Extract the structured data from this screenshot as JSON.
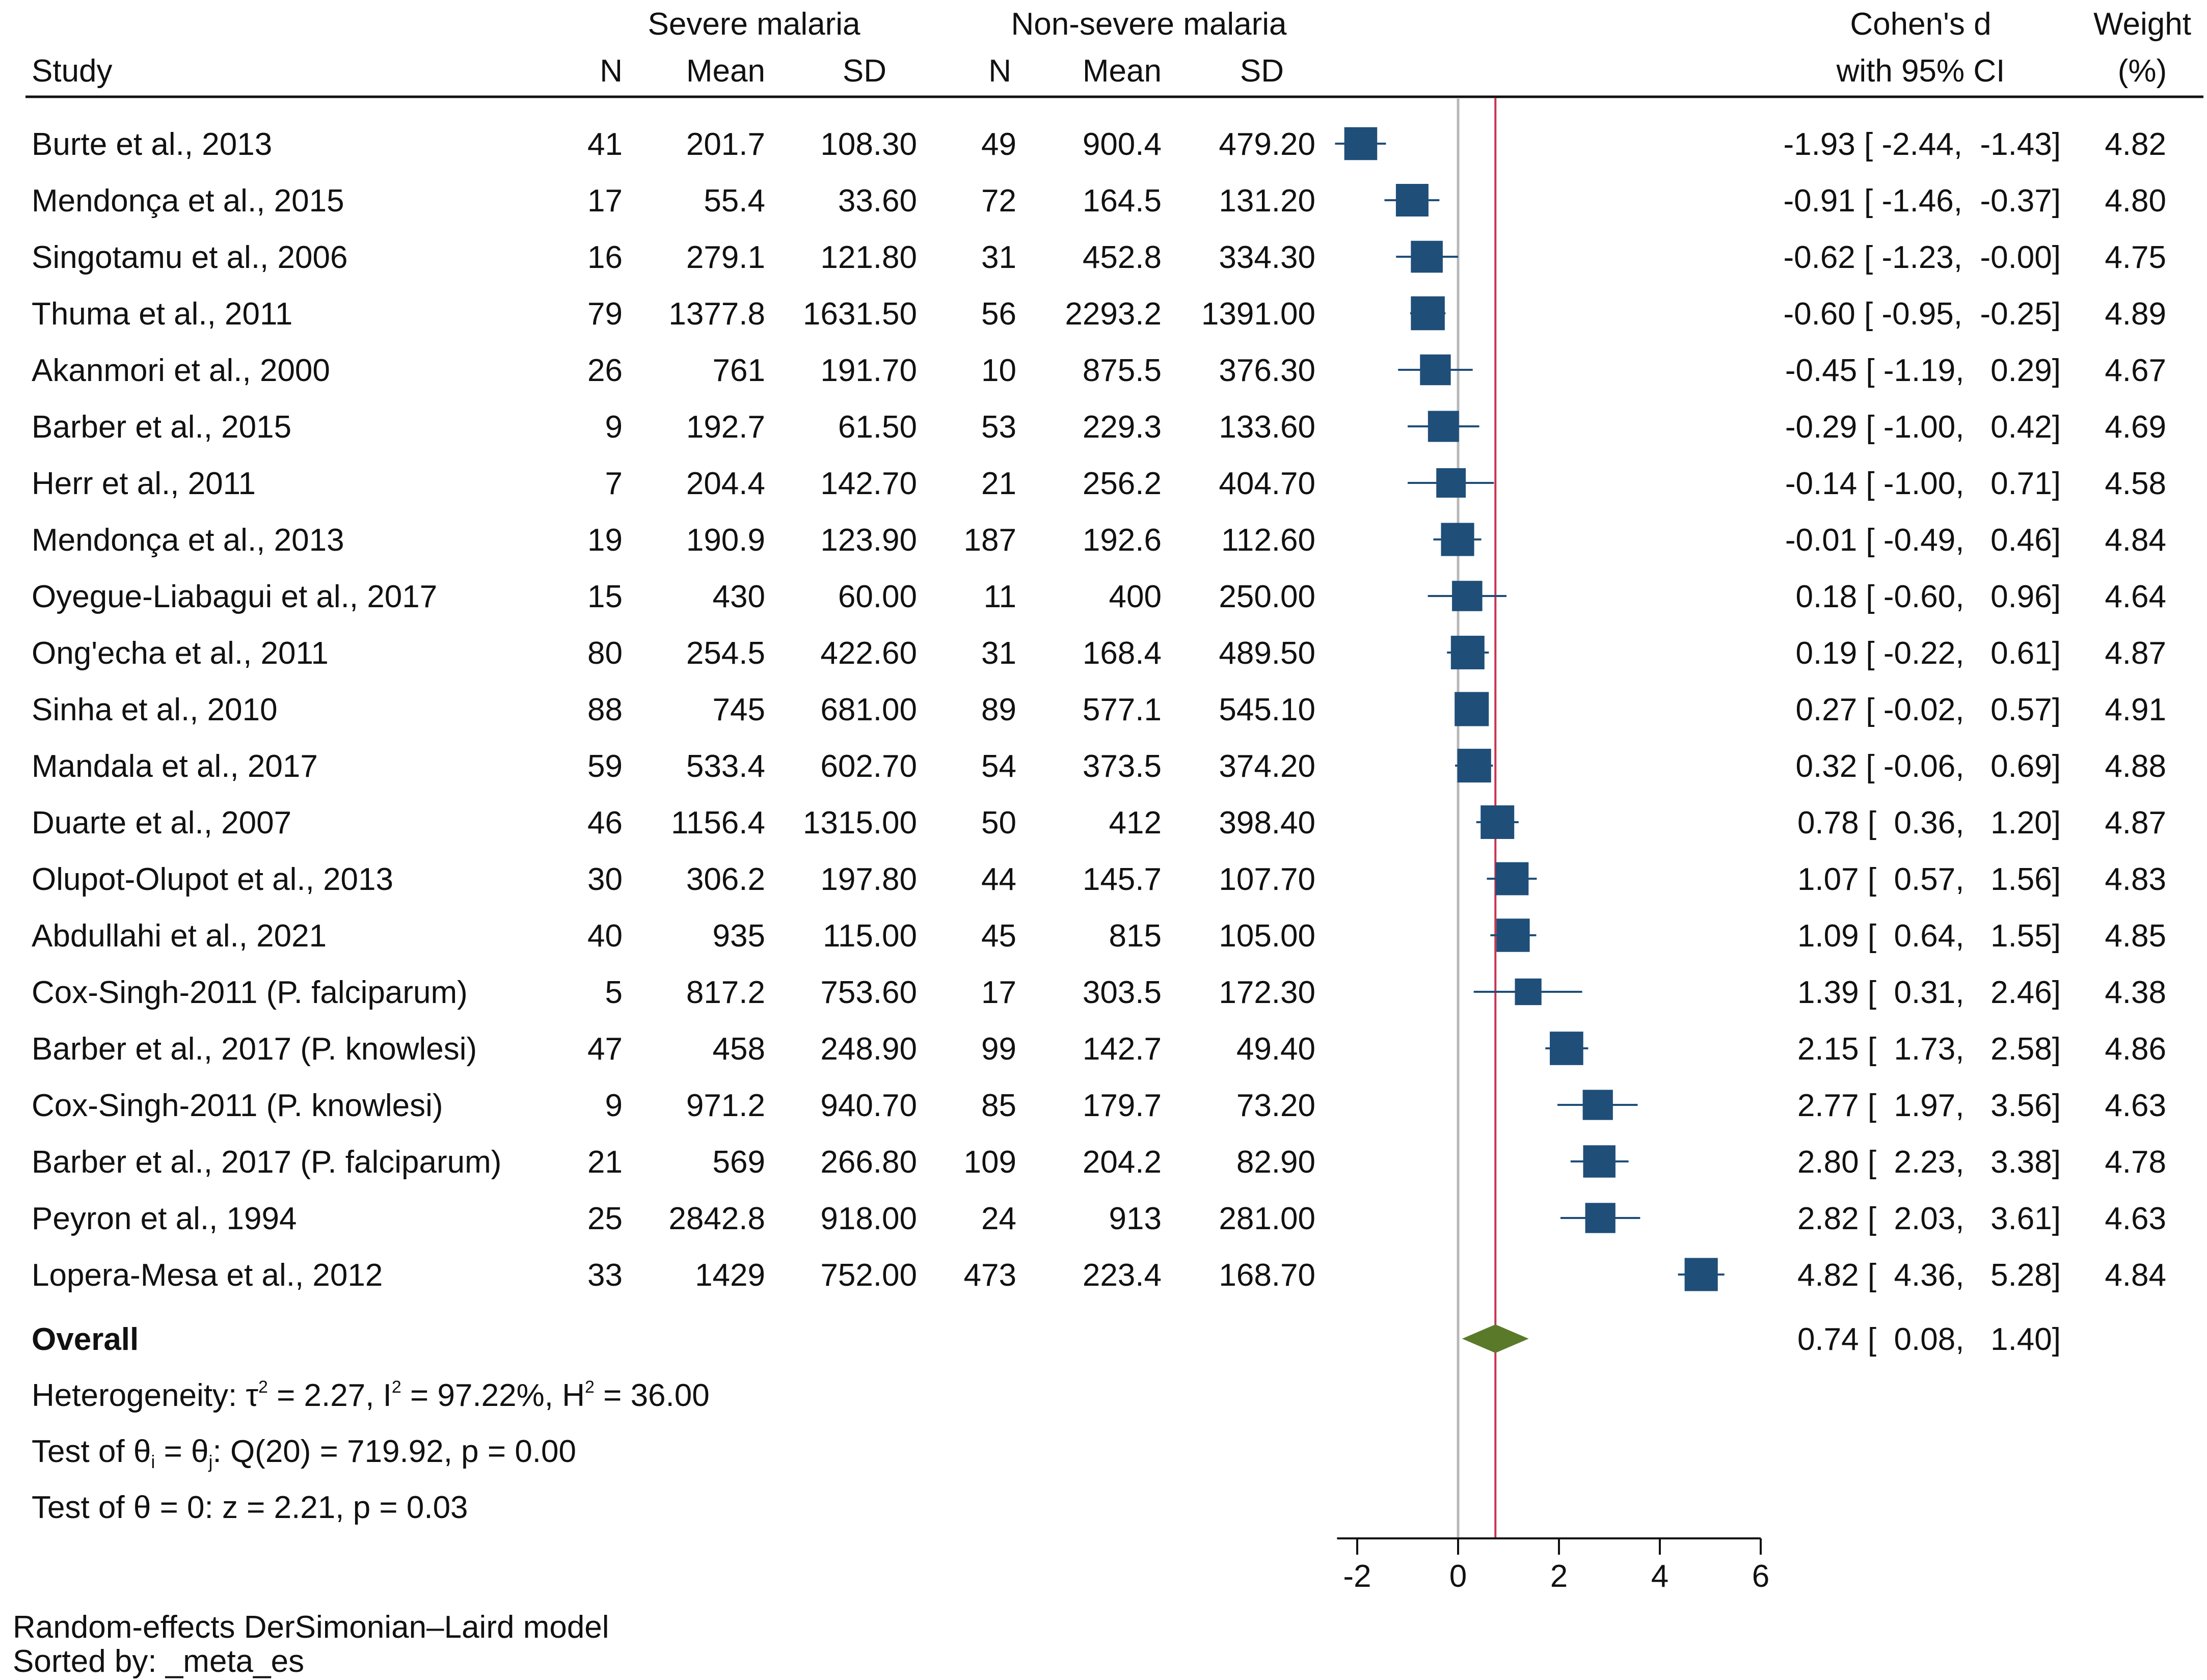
{
  "chart_data": {
    "type": "forest",
    "title": "",
    "group_headers": {
      "severe": "Severe malaria",
      "nonsevere": "Non-severe malaria"
    },
    "columns": {
      "study": "Study",
      "n1": "N",
      "mean1": "Mean",
      "sd1": "SD",
      "n2": "N",
      "mean2": "Mean",
      "sd2": "SD",
      "es_line1": "Cohen's d",
      "es_line2": "with 95% CI",
      "weight_line1": "Weight",
      "weight_line2": "(%)"
    },
    "studies": [
      {
        "study": "Burte et al., 2013",
        "n1": "41",
        "mean1": "201.7",
        "sd1": "108.30",
        "n2": "49",
        "mean2": "900.4",
        "sd2": "479.20",
        "d": -1.93,
        "lo": -2.44,
        "hi": -1.43,
        "es_text": "-1.93 [ -2.44,  -1.43]",
        "weight": "4.82"
      },
      {
        "study": "Mendonça et al., 2015",
        "n1": "17",
        "mean1": "55.4",
        "sd1": "33.60",
        "n2": "72",
        "mean2": "164.5",
        "sd2": "131.20",
        "d": -0.91,
        "lo": -1.46,
        "hi": -0.37,
        "es_text": "-0.91 [ -1.46,  -0.37]",
        "weight": "4.80"
      },
      {
        "study": "Singotamu et al., 2006",
        "n1": "16",
        "mean1": "279.1",
        "sd1": "121.80",
        "n2": "31",
        "mean2": "452.8",
        "sd2": "334.30",
        "d": -0.62,
        "lo": -1.23,
        "hi": -0.0,
        "es_text": "-0.62 [ -1.23,  -0.00]",
        "weight": "4.75"
      },
      {
        "study": "Thuma et al., 2011",
        "n1": "79",
        "mean1": "1377.8",
        "sd1": "1631.50",
        "n2": "56",
        "mean2": "2293.2",
        "sd2": "1391.00",
        "d": -0.6,
        "lo": -0.95,
        "hi": -0.25,
        "es_text": "-0.60 [ -0.95,  -0.25]",
        "weight": "4.89"
      },
      {
        "study": "Akanmori et al., 2000",
        "n1": "26",
        "mean1": "761",
        "sd1": "191.70",
        "n2": "10",
        "mean2": "875.5",
        "sd2": "376.30",
        "d": -0.45,
        "lo": -1.19,
        "hi": 0.29,
        "es_text": "-0.45 [ -1.19,   0.29]",
        "weight": "4.67"
      },
      {
        "study": "Barber et al., 2015",
        "n1": "9",
        "mean1": "192.7",
        "sd1": "61.50",
        "n2": "53",
        "mean2": "229.3",
        "sd2": "133.60",
        "d": -0.29,
        "lo": -1.0,
        "hi": 0.42,
        "es_text": "-0.29 [ -1.00,   0.42]",
        "weight": "4.69"
      },
      {
        "study": "Herr et al., 2011",
        "n1": "7",
        "mean1": "204.4",
        "sd1": "142.70",
        "n2": "21",
        "mean2": "256.2",
        "sd2": "404.70",
        "d": -0.14,
        "lo": -1.0,
        "hi": 0.71,
        "es_text": "-0.14 [ -1.00,   0.71]",
        "weight": "4.58"
      },
      {
        "study": "Mendonça et al., 2013",
        "n1": "19",
        "mean1": "190.9",
        "sd1": "123.90",
        "n2": "187",
        "mean2": "192.6",
        "sd2": "112.60",
        "d": -0.01,
        "lo": -0.49,
        "hi": 0.46,
        "es_text": "-0.01 [ -0.49,   0.46]",
        "weight": "4.84"
      },
      {
        "study": "Oyegue-Liabagui et al., 2017",
        "n1": "15",
        "mean1": "430",
        "sd1": "60.00",
        "n2": "11",
        "mean2": "400",
        "sd2": "250.00",
        "d": 0.18,
        "lo": -0.6,
        "hi": 0.96,
        "es_text": "0.18 [ -0.60,   0.96]",
        "weight": "4.64"
      },
      {
        "study": "Ong'echa et al., 2011",
        "n1": "80",
        "mean1": "254.5",
        "sd1": "422.60",
        "n2": "31",
        "mean2": "168.4",
        "sd2": "489.50",
        "d": 0.19,
        "lo": -0.22,
        "hi": 0.61,
        "es_text": "0.19 [ -0.22,   0.61]",
        "weight": "4.87"
      },
      {
        "study": "Sinha et al., 2010",
        "n1": "88",
        "mean1": "745",
        "sd1": "681.00",
        "n2": "89",
        "mean2": "577.1",
        "sd2": "545.10",
        "d": 0.27,
        "lo": -0.02,
        "hi": 0.57,
        "es_text": "0.27 [ -0.02,   0.57]",
        "weight": "4.91"
      },
      {
        "study": "Mandala et al., 2017",
        "n1": "59",
        "mean1": "533.4",
        "sd1": "602.70",
        "n2": "54",
        "mean2": "373.5",
        "sd2": "374.20",
        "d": 0.32,
        "lo": -0.06,
        "hi": 0.69,
        "es_text": "0.32 [ -0.06,   0.69]",
        "weight": "4.88"
      },
      {
        "study": "Duarte et al., 2007",
        "n1": "46",
        "mean1": "1156.4",
        "sd1": "1315.00",
        "n2": "50",
        "mean2": "412",
        "sd2": "398.40",
        "d": 0.78,
        "lo": 0.36,
        "hi": 1.2,
        "es_text": "0.78 [  0.36,   1.20]",
        "weight": "4.87"
      },
      {
        "study": "Olupot-Olupot et al., 2013",
        "n1": "30",
        "mean1": "306.2",
        "sd1": "197.80",
        "n2": "44",
        "mean2": "145.7",
        "sd2": "107.70",
        "d": 1.07,
        "lo": 0.57,
        "hi": 1.56,
        "es_text": "1.07 [  0.57,   1.56]",
        "weight": "4.83"
      },
      {
        "study": "Abdullahi et al., 2021",
        "n1": "40",
        "mean1": "935",
        "sd1": "115.00",
        "n2": "45",
        "mean2": "815",
        "sd2": "105.00",
        "d": 1.09,
        "lo": 0.64,
        "hi": 1.55,
        "es_text": "1.09 [  0.64,   1.55]",
        "weight": "4.85"
      },
      {
        "study": "Cox-Singh-2011 (P. falciparum)",
        "n1": "5",
        "mean1": "817.2",
        "sd1": "753.60",
        "n2": "17",
        "mean2": "303.5",
        "sd2": "172.30",
        "d": 1.39,
        "lo": 0.31,
        "hi": 2.46,
        "es_text": "1.39 [  0.31,   2.46]",
        "weight": "4.38"
      },
      {
        "study": "Barber et al., 2017 (P. knowlesi)",
        "n1": "47",
        "mean1": "458",
        "sd1": "248.90",
        "n2": "99",
        "mean2": "142.7",
        "sd2": "49.40",
        "d": 2.15,
        "lo": 1.73,
        "hi": 2.58,
        "es_text": "2.15 [  1.73,   2.58]",
        "weight": "4.86"
      },
      {
        "study": "Cox-Singh-2011 (P. knowlesi)",
        "n1": "9",
        "mean1": "971.2",
        "sd1": "940.70",
        "n2": "85",
        "mean2": "179.7",
        "sd2": "73.20",
        "d": 2.77,
        "lo": 1.97,
        "hi": 3.56,
        "es_text": "2.77 [  1.97,   3.56]",
        "weight": "4.63"
      },
      {
        "study": "Barber et al., 2017 (P. falciparum)",
        "n1": "21",
        "mean1": "569",
        "sd1": "266.80",
        "n2": "109",
        "mean2": "204.2",
        "sd2": "82.90",
        "d": 2.8,
        "lo": 2.23,
        "hi": 3.38,
        "es_text": "2.80 [  2.23,   3.38]",
        "weight": "4.78"
      },
      {
        "study": "Peyron et al., 1994",
        "n1": "25",
        "mean1": "2842.8",
        "sd1": "918.00",
        "n2": "24",
        "mean2": "913",
        "sd2": "281.00",
        "d": 2.82,
        "lo": 2.03,
        "hi": 3.61,
        "es_text": "2.82 [  2.03,   3.61]",
        "weight": "4.63"
      },
      {
        "study": "Lopera-Mesa et al., 2012",
        "n1": "33",
        "mean1": "1429",
        "sd1": "752.00",
        "n2": "473",
        "mean2": "223.4",
        "sd2": "168.70",
        "d": 4.82,
        "lo": 4.36,
        "hi": 5.28,
        "es_text": "4.82 [  4.36,   5.28]",
        "weight": "4.84"
      }
    ],
    "overall": {
      "label": "Overall",
      "d": 0.74,
      "lo": 0.08,
      "hi": 1.4,
      "es_text": "0.74 [  0.08,   1.40]"
    },
    "heterogeneity": {
      "prefix": "Heterogeneity: τ",
      "tau2": " = 2.27, I",
      "i2": " = 97.22%, H",
      "h2": " = 36.00",
      "sup": "2"
    },
    "test_homogeneity": {
      "prefix": "Test of θ",
      "sub_i": "i",
      "mid": " = θ",
      "sub_j": "j",
      "rest": ": Q(20) = 719.92, p = 0.00"
    },
    "test_overall": "Test of θ = 0: z = 2.21, p = 0.03",
    "x_axis": {
      "ticks": [
        -2,
        0,
        2,
        4,
        6
      ],
      "tick_labels": [
        "-2",
        "0",
        "2",
        "4",
        "6"
      ],
      "range": [
        -2.4,
        6
      ]
    },
    "footnotes": [
      "Random-effects DerSimonian–Laird model",
      "Sorted by: _meta_es"
    ],
    "colors": {
      "marker": "#1f4e79",
      "diamond": "#5a7a2a",
      "overall_line": "#c8354f",
      "null_line": "#b8b8b8",
      "text": "#111111"
    }
  }
}
